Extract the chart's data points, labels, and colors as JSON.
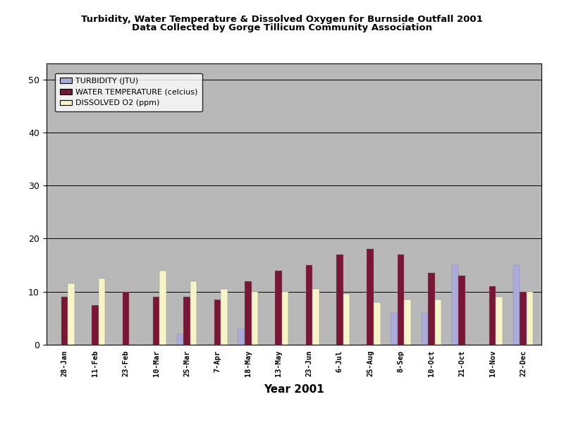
{
  "title_line1": "Turbidity, Water Temperature & Dissolved Oxygen for Burnside Outfall 2001",
  "title_line2": "Data Collected by Gorge Tillicum Community Association",
  "xlabel": "Year 2001",
  "categories": [
    "28-Jan",
    "11-Feb",
    "23-Feb",
    "10-Mar",
    "25-Mar",
    "7-Apr",
    "18-May",
    "13-May",
    "23-Jun",
    "6-Jul",
    "25-Aug",
    "8-Sep",
    "10-Oct",
    "21-Oct",
    "10-Nov",
    "22-Dec"
  ],
  "turbidity": [
    0,
    0,
    0,
    0,
    2,
    0,
    3,
    0,
    0,
    0,
    0,
    6,
    6,
    15,
    0,
    15
  ],
  "water_temp": [
    9,
    7.5,
    10,
    9,
    9,
    8.5,
    12,
    14,
    15,
    17,
    18,
    17,
    13.5,
    13,
    11,
    10
  ],
  "dissolved_o2": [
    11.5,
    12.5,
    0,
    14,
    12,
    10.5,
    10,
    10,
    10.5,
    9.5,
    8,
    8.5,
    8.5,
    0,
    9,
    10
  ],
  "turbidity_color": "#aaaadd",
  "water_temp_color": "#7b1535",
  "dissolved_o2_color": "#f5f5c8",
  "plot_bg_color": "#b8b8b8",
  "ylim": [
    0,
    53
  ],
  "yticks": [
    0,
    10,
    20,
    30,
    40,
    50
  ],
  "legend_labels": [
    "TURBIDITY (JTU)",
    "WATER TEMPERATURE (celcius)",
    "DISSOLVED O2 (ppm)"
  ],
  "bar_width": 0.22
}
